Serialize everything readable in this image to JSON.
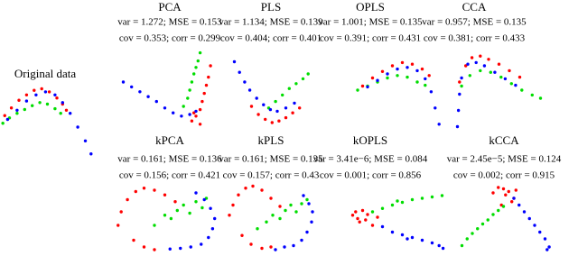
{
  "chart_data": [
    {
      "type": "scatter",
      "title": "Original data",
      "xlim": [
        0,
        100
      ],
      "ylim": [
        0,
        100
      ],
      "series": [
        {
          "color": "#ff0000",
          "x": [
            5,
            12,
            20,
            28,
            36,
            44,
            52,
            60,
            66,
            70
          ],
          "y": [
            55,
            65,
            75,
            82,
            88,
            90,
            86,
            78,
            70,
            62
          ]
        },
        {
          "color": "#00dd00",
          "x": [
            3,
            10,
            18,
            26,
            34,
            42,
            50,
            58,
            64
          ],
          "y": [
            45,
            52,
            58,
            63,
            68,
            72,
            70,
            64,
            58
          ]
        },
        {
          "color": "#0000ff",
          "x": [
            8,
            18,
            28,
            38,
            48,
            58,
            66,
            74,
            82,
            90,
            96
          ],
          "y": [
            50,
            62,
            74,
            82,
            86,
            82,
            72,
            58,
            40,
            22,
            5
          ]
        }
      ]
    },
    {
      "type": "scatter",
      "title": "PCA",
      "annotations": [
        "var = 1.272; MSE = 0.153",
        "cov = 0.353; corr = 0.299"
      ],
      "xlim": [
        0,
        100
      ],
      "ylim": [
        0,
        100
      ],
      "series": [
        {
          "color": "#ff0000",
          "x": [
            76,
            80,
            84,
            86,
            88,
            90,
            92,
            94,
            84,
            78
          ],
          "y": [
            12,
            18,
            26,
            36,
            46,
            56,
            66,
            80,
            8,
            22
          ]
        },
        {
          "color": "#00dd00",
          "x": [
            68,
            72,
            74,
            76,
            78,
            80,
            82,
            84
          ],
          "y": [
            30,
            40,
            50,
            60,
            70,
            78,
            86,
            96
          ]
        },
        {
          "color": "#0000ff",
          "x": [
            10,
            18,
            26,
            34,
            42,
            50,
            58,
            66,
            74,
            80
          ],
          "y": [
            60,
            54,
            48,
            42,
            36,
            28,
            22,
            18,
            20,
            24
          ]
        }
      ]
    },
    {
      "type": "scatter",
      "title": "PLS",
      "annotations": [
        "var = 1.134; MSE = 0.139",
        "cov = 0.404; corr = 0.401"
      ],
      "xlim": [
        0,
        100
      ],
      "ylim": [
        0,
        100
      ],
      "series": [
        {
          "color": "#ff0000",
          "x": [
            30,
            38,
            46,
            54,
            62,
            70,
            78,
            86
          ],
          "y": [
            30,
            20,
            14,
            10,
            12,
            16,
            22,
            28
          ]
        },
        {
          "color": "#00dd00",
          "x": [
            50,
            58,
            66,
            74,
            82,
            90,
            96
          ],
          "y": [
            28,
            36,
            44,
            52,
            58,
            64,
            70
          ]
        },
        {
          "color": "#0000ff",
          "x": [
            10,
            16,
            22,
            28,
            36,
            44,
            52,
            60,
            70,
            80
          ],
          "y": [
            85,
            72,
            60,
            50,
            40,
            32,
            26,
            24,
            28,
            34
          ]
        }
      ]
    },
    {
      "type": "scatter",
      "title": "OPLS",
      "annotations": [
        "var = 1.001; MSE = 0.135",
        "cov = 0.391; corr = 0.431"
      ],
      "xlim": [
        0,
        100
      ],
      "ylim": [
        0,
        100
      ],
      "series": [
        {
          "color": "#ff0000",
          "x": [
            15,
            25,
            35,
            45,
            55,
            65,
            75,
            82
          ],
          "y": [
            55,
            65,
            73,
            80,
            84,
            82,
            76,
            68
          ]
        },
        {
          "color": "#00dd00",
          "x": [
            10,
            20,
            30,
            40,
            50,
            60,
            70,
            78
          ],
          "y": [
            50,
            55,
            60,
            65,
            68,
            66,
            60,
            56
          ]
        },
        {
          "color": "#0000ff",
          "x": [
            20,
            30,
            40,
            50,
            60,
            70,
            78,
            84,
            88,
            92
          ],
          "y": [
            54,
            62,
            70,
            76,
            78,
            74,
            64,
            48,
            28,
            8
          ]
        }
      ]
    },
    {
      "type": "scatter",
      "title": "CCA",
      "annotations": [
        "var = 0.957; MSE = 0.135",
        "cov = 0.381; corr = 0.433"
      ],
      "xlim": [
        0,
        100
      ],
      "ylim": [
        0,
        100
      ],
      "series": [
        {
          "color": "#ff0000",
          "x": [
            12,
            18,
            24,
            32,
            40,
            50,
            60,
            70
          ],
          "y": [
            60,
            80,
            90,
            92,
            88,
            82,
            74,
            66
          ]
        },
        {
          "color": "#00dd00",
          "x": [
            14,
            22,
            32,
            42,
            52,
            62,
            72,
            82,
            90
          ],
          "y": [
            55,
            68,
            74,
            72,
            66,
            58,
            50,
            44,
            40
          ]
        },
        {
          "color": "#0000ff",
          "x": [
            10,
            11,
            12,
            14,
            20,
            28,
            36,
            46,
            56,
            66
          ],
          "y": [
            5,
            25,
            45,
            65,
            82,
            84,
            80,
            72,
            64,
            56
          ]
        }
      ]
    },
    {
      "type": "scatter",
      "title": "kPCA",
      "annotations": [
        "var = 0.161; MSE = 0.136",
        "cov = 0.156; corr = 0.421"
      ],
      "xlim": [
        0,
        100
      ],
      "ylim": [
        0,
        100
      ],
      "series": [
        {
          "color": "#ff0000",
          "x": [
            5,
            8,
            14,
            22,
            30,
            40,
            50,
            60,
            20,
            30,
            40
          ],
          "y": [
            40,
            60,
            78,
            90,
            95,
            92,
            85,
            75,
            18,
            8,
            4
          ]
        },
        {
          "color": "#00dd00",
          "x": [
            40,
            50,
            56,
            62,
            68,
            74,
            80,
            86,
            90
          ],
          "y": [
            40,
            55,
            50,
            62,
            70,
            58,
            75,
            66,
            80
          ]
        },
        {
          "color": "#0000ff",
          "x": [
            55,
            65,
            75,
            85,
            92,
            96,
            98,
            94,
            88,
            80
          ],
          "y": [
            5,
            6,
            8,
            12,
            22,
            35,
            50,
            65,
            78,
            88
          ]
        }
      ]
    },
    {
      "type": "scatter",
      "title": "kPLS",
      "annotations": [
        "var = 0.161; MSE = 0.135",
        "cov = 0.157; corr = 0.43"
      ],
      "xlim": [
        0,
        100
      ],
      "ylim": [
        0,
        100
      ],
      "series": [
        {
          "color": "#ff0000",
          "x": [
            4,
            8,
            14,
            22,
            30,
            40,
            50,
            60,
            18,
            28,
            40,
            50
          ],
          "y": [
            55,
            70,
            85,
            95,
            98,
            92,
            80,
            68,
            25,
            12,
            6,
            8
          ]
        },
        {
          "color": "#00dd00",
          "x": [
            35,
            45,
            52,
            60,
            66,
            72,
            78,
            84,
            90
          ],
          "y": [
            35,
            45,
            55,
            50,
            62,
            70,
            60,
            72,
            78
          ]
        },
        {
          "color": "#0000ff",
          "x": [
            55,
            65,
            75,
            84,
            90,
            95,
            96,
            92,
            86
          ],
          "y": [
            4,
            8,
            10,
            18,
            30,
            45,
            60,
            72,
            84
          ]
        }
      ]
    },
    {
      "type": "scatter",
      "title": "kOPLS",
      "annotations": [
        "var = 3.41e−6; MSE = 0.084",
        "cov = 0.001; corr = 0.856"
      ],
      "xlim": [
        0,
        100
      ],
      "ylim": [
        0,
        100
      ],
      "series": [
        {
          "color": "#ff0000",
          "x": [
            5,
            8,
            10,
            12,
            15,
            18,
            20,
            25,
            30
          ],
          "y": [
            55,
            60,
            50,
            45,
            62,
            48,
            56,
            40,
            52
          ]
        },
        {
          "color": "#00dd00",
          "x": [
            25,
            35,
            45,
            55,
            65,
            75,
            85,
            95,
            50
          ],
          "y": [
            60,
            65,
            70,
            74,
            78,
            80,
            82,
            84,
            76
          ]
        },
        {
          "color": "#0000ff",
          "x": [
            35,
            45,
            55,
            65,
            75,
            85,
            92,
            96,
            60
          ],
          "y": [
            38,
            30,
            26,
            22,
            18,
            14,
            10,
            6,
            20
          ]
        }
      ]
    },
    {
      "type": "scatter",
      "title": "kCCA",
      "annotations": [
        "var = 2.45e−5; MSE = 0.124",
        "cov = 0.002; corr = 0.915"
      ],
      "xlim": [
        0,
        100
      ],
      "ylim": [
        0,
        100
      ],
      "series": [
        {
          "color": "#ff0000",
          "x": [
            40,
            45,
            50,
            55,
            60,
            48,
            52,
            58,
            62
          ],
          "y": [
            88,
            96,
            94,
            90,
            80,
            70,
            85,
            75,
            92
          ]
        },
        {
          "color": "#00dd00",
          "x": [
            10,
            15,
            20,
            25,
            30,
            35,
            40,
            45,
            50
          ],
          "y": [
            10,
            20,
            28,
            35,
            42,
            48,
            56,
            62,
            68
          ]
        },
        {
          "color": "#0000ff",
          "x": [
            60,
            65,
            70,
            75,
            80,
            85,
            90,
            94,
            92
          ],
          "y": [
            80,
            70,
            60,
            50,
            40,
            30,
            20,
            8,
            4
          ]
        }
      ]
    }
  ]
}
